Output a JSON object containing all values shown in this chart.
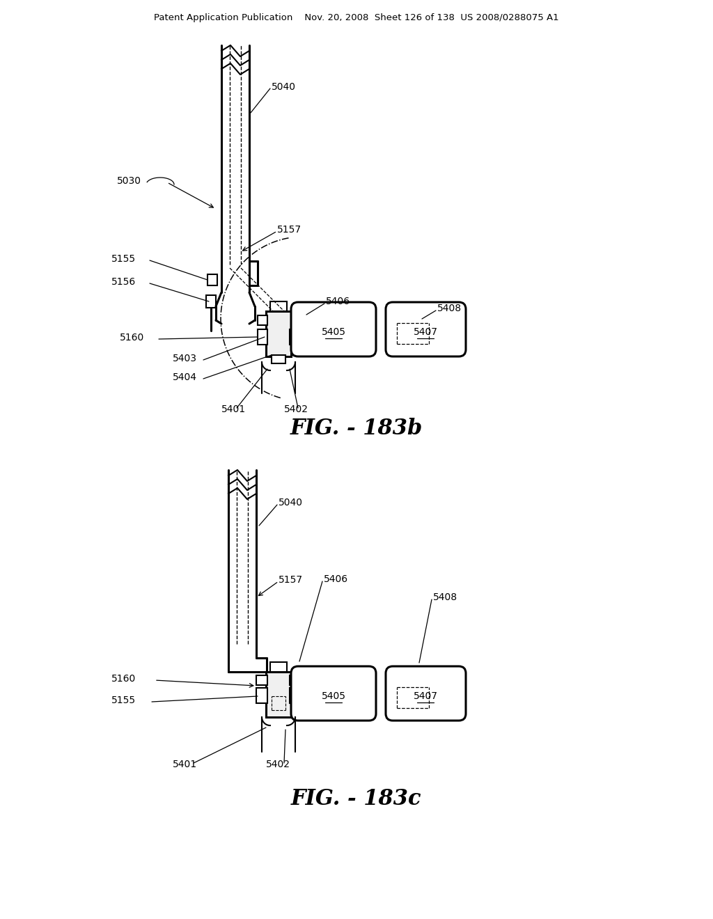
{
  "background_color": "#ffffff",
  "header_text": "Patent Application Publication    Nov. 20, 2008  Sheet 126 of 138  US 2008/0288075 A1",
  "fig_label_b": "FIG. - 183b",
  "fig_label_c": "FIG. - 183c",
  "line_color": "#000000",
  "line_width": 1.5,
  "header_fontsize": 10,
  "fig_label_fontsize": 22,
  "annotation_fontsize": 10
}
